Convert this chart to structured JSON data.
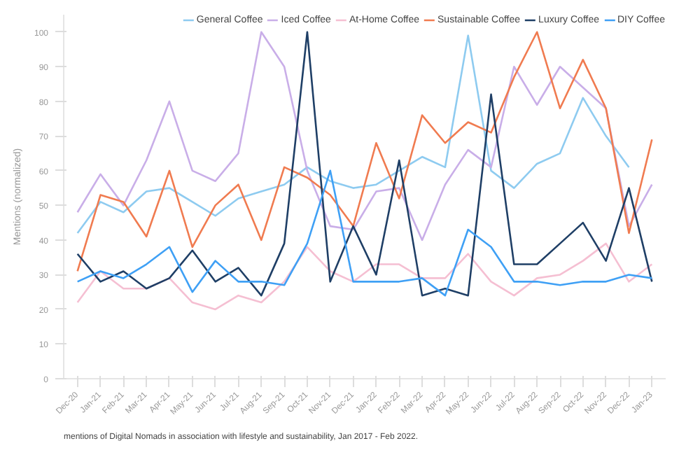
{
  "chart_data": {
    "type": "line",
    "ylabel": "Mentions (normalized)",
    "categories": [
      "Dec-20",
      "Jan-21",
      "Feb-21",
      "Mar-21",
      "Apr-21",
      "May-21",
      "Jun-21",
      "Jul-21",
      "Aug-21",
      "Sep-21",
      "Oct-21",
      "Nov-21",
      "Dec-21",
      "Jan-22",
      "Feb-22",
      "Mar-22",
      "Apr-22",
      "May-22",
      "Jun-22",
      "Jul-22",
      "Aug-22",
      "Sep-22",
      "Oct-22",
      "Nov-22",
      "Dec-22",
      "Jan-23"
    ],
    "series": [
      {
        "name": "General Coffee",
        "color": "#8ecbf0",
        "values": [
          42,
          51,
          48,
          54,
          55,
          51,
          47,
          52,
          54,
          56,
          61,
          57,
          55,
          56,
          60,
          64,
          61,
          99,
          60,
          55,
          62,
          65,
          81,
          70,
          61,
          null
        ]
      },
      {
        "name": "Iced Coffee",
        "color": "#c9aee8",
        "values": [
          48,
          59,
          50,
          63,
          80,
          60,
          57,
          65,
          100,
          90,
          60,
          44,
          43,
          54,
          55,
          40,
          56,
          66,
          61,
          90,
          79,
          90,
          84,
          78,
          44,
          56
        ]
      },
      {
        "name": "At-Home Coffee",
        "color": "#f5bfd2",
        "values": [
          22,
          31,
          26,
          26,
          29,
          22,
          20,
          24,
          22,
          28,
          38,
          31,
          28,
          33,
          33,
          29,
          29,
          36,
          28,
          24,
          29,
          30,
          34,
          39,
          28,
          33
        ]
      },
      {
        "name": "Sustainable Coffee",
        "color": "#f07b50",
        "values": [
          31,
          53,
          51,
          41,
          60,
          38,
          50,
          56,
          40,
          61,
          58,
          53,
          44,
          68,
          52,
          76,
          68,
          74,
          71,
          87,
          100,
          78,
          92,
          78,
          42,
          69
        ]
      },
      {
        "name": "Luxury Coffee",
        "color": "#1f3f66",
        "values": [
          36,
          28,
          31,
          26,
          29,
          37,
          28,
          32,
          24,
          39,
          100,
          28,
          44,
          30,
          63,
          24,
          26,
          24,
          82,
          33,
          33,
          39,
          45,
          34,
          55,
          28
        ]
      },
      {
        "name": "DIY Coffee",
        "color": "#3fa0f5",
        "values": [
          28,
          31,
          29,
          33,
          38,
          25,
          34,
          28,
          28,
          27,
          39,
          60,
          28,
          28,
          28,
          29,
          24,
          43,
          38,
          28,
          28,
          27,
          28,
          28,
          30,
          29
        ]
      }
    ],
    "ylim": [
      0,
      105
    ],
    "yticks": [
      0,
      10,
      20,
      30,
      40,
      50,
      60,
      70,
      80,
      90,
      100
    ],
    "legend": "top right",
    "line_style": "solid",
    "marker": "none",
    "annotations": [
      "mentions of Digital Nomads in association with lifestyle and sustainability, Jan 2017 - Feb 2022."
    ]
  }
}
